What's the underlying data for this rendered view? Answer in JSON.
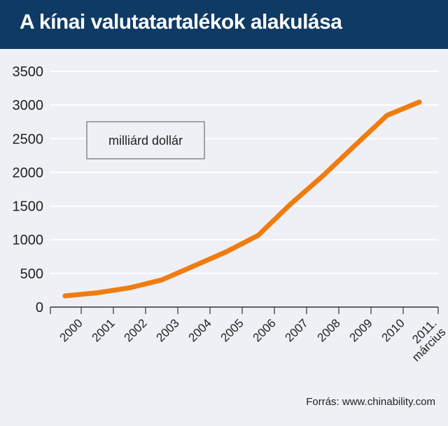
{
  "header": {
    "title": "A kínai valutatartalékok alakulása"
  },
  "source": "Forrás: www.chinability.com",
  "colors": {
    "header_bg": "#0f3a63",
    "background": "#eef0f5",
    "line": "#f07c10",
    "grid": "#ffffff"
  },
  "chart_data": {
    "type": "line",
    "title": "A kínai valutatartalékok alakulása",
    "unit_label": "milliárd dollár",
    "categories": [
      "2000",
      "2001",
      "2002",
      "2003",
      "2004",
      "2005",
      "2006",
      "2007",
      "2008",
      "2009",
      "2010",
      "2011. március"
    ],
    "category_labels": [
      [
        "2000"
      ],
      [
        "2001"
      ],
      [
        "2002"
      ],
      [
        "2003"
      ],
      [
        "2004"
      ],
      [
        "2005"
      ],
      [
        "2006"
      ],
      [
        "2007"
      ],
      [
        "2008"
      ],
      [
        "2009"
      ],
      [
        "2010"
      ],
      [
        "2011.",
        "március"
      ]
    ],
    "series": [
      {
        "values": [
          166,
          212,
          286,
          403,
          610,
          819,
          1066,
          1528,
          1946,
          2399,
          2847,
          3044
        ]
      }
    ],
    "ylim": [
      0,
      3500
    ],
    "yticks": [
      0,
      500,
      1000,
      1500,
      2000,
      2500,
      3000,
      3500
    ],
    "grid": true,
    "xlabel": "",
    "ylabel": ""
  }
}
